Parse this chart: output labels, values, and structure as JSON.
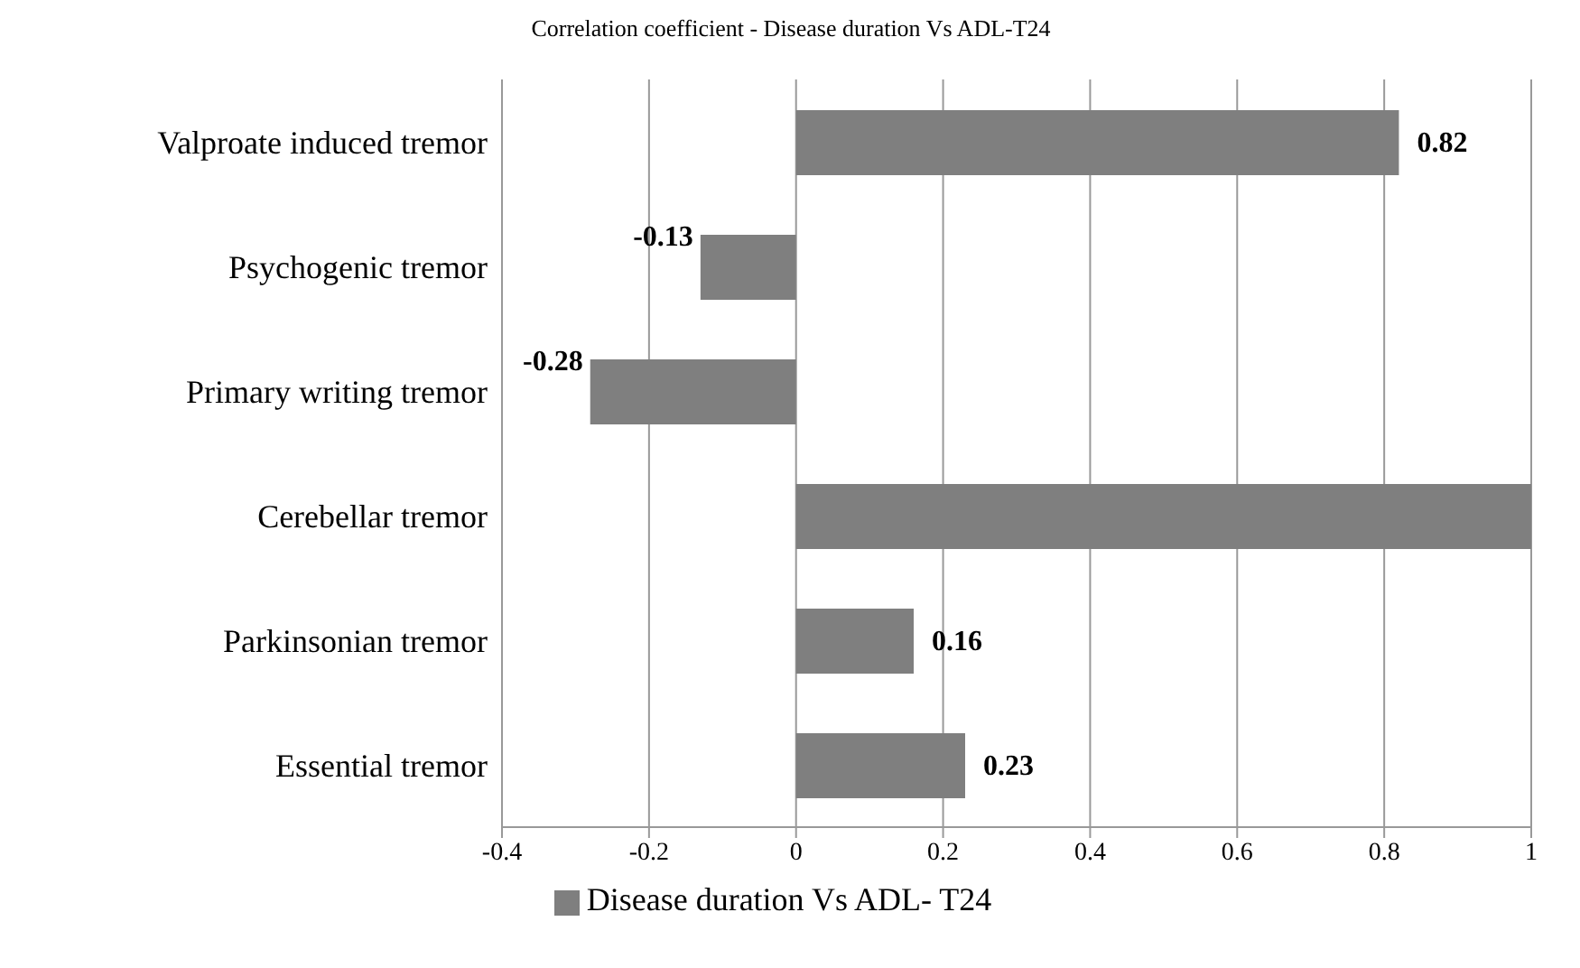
{
  "chart_data": {
    "type": "bar",
    "orientation": "horizontal",
    "title": "Correlation coefficient - Disease duration Vs ADL-T24",
    "categories": [
      "Valproate induced tremor",
      "Psychogenic tremor",
      "Primary writing tremor",
      "Cerebellar tremor",
      "Parkinsonian tremor",
      "Essential tremor"
    ],
    "series": [
      {
        "name": "Disease duration Vs ADL- T24",
        "color": "#7f7f7f",
        "values": [
          0.82,
          -0.13,
          -0.28,
          1,
          0.16,
          0.23
        ],
        "value_labels": [
          "0.82",
          "-0.13",
          "-0.28",
          null,
          "0.16",
          "0.23"
        ]
      }
    ],
    "xlim": [
      -0.4,
      1
    ],
    "xticks": [
      -0.4,
      -0.2,
      0,
      0.2,
      0.4,
      0.6,
      0.8,
      1
    ],
    "grid": "x",
    "legend": "bottom"
  }
}
